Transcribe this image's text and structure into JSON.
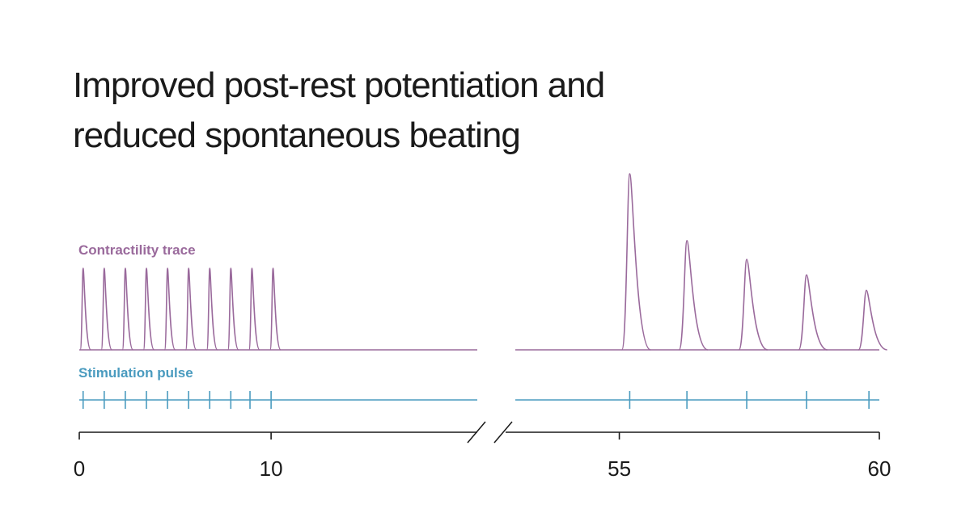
{
  "chart_data": {
    "type": "line",
    "title": [
      "Improved post-rest potentiation and",
      "reduced spontaneous beating"
    ],
    "panels": [
      {
        "xlim": [
          0,
          20.75
        ],
        "xticks": [
          0,
          10
        ]
      },
      {
        "xlim": [
          53,
          60
        ],
        "xticks": [
          55,
          60
        ]
      }
    ],
    "ylim": [
      0,
      2.2
    ],
    "series": [
      {
        "name": "Contractility trace",
        "color": "#9a6a9c",
        "x": [
          0.2,
          1.3,
          2.4,
          3.5,
          4.6,
          5.7,
          6.8,
          7.9,
          9.0,
          10.1,
          55.2,
          56.3,
          57.45,
          58.6,
          59.75
        ],
        "values": [
          1,
          1,
          1,
          1,
          1,
          1,
          1,
          1,
          1,
          1,
          2.16,
          1.34,
          1.11,
          0.92,
          0.73
        ]
      },
      {
        "name": "Stimulation pulse",
        "color": "#4a9bbf",
        "x": [
          0.2,
          1.3,
          2.4,
          3.5,
          4.6,
          5.7,
          6.8,
          7.9,
          8.9,
          10,
          55.2,
          56.3,
          57.45,
          58.6,
          59.8
        ]
      }
    ]
  }
}
